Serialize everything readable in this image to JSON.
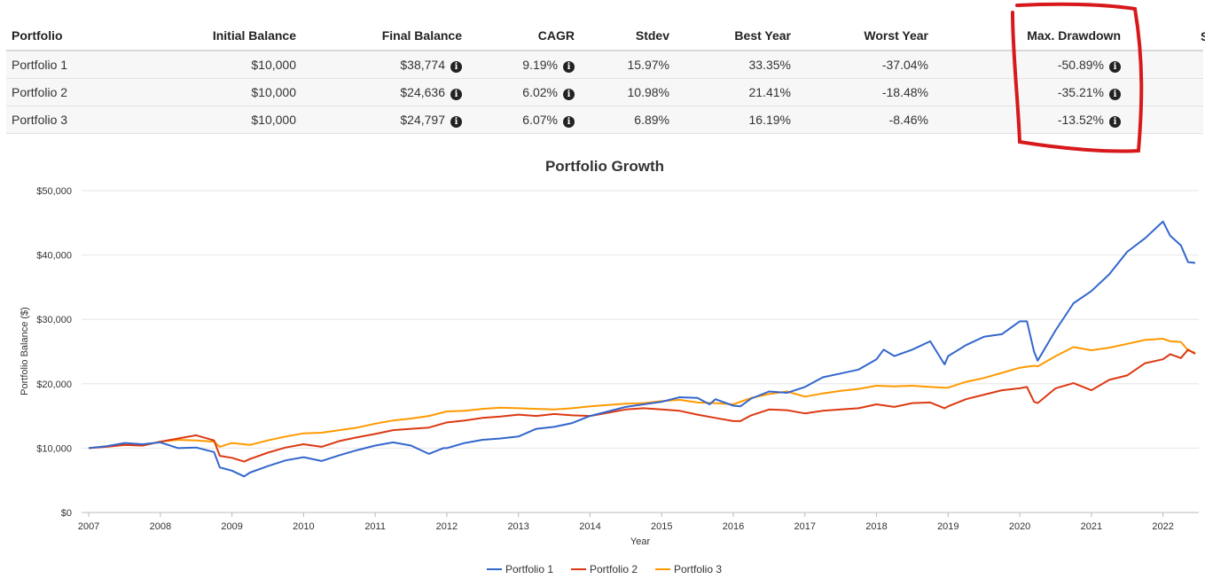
{
  "table": {
    "headers": [
      "Portfolio",
      "Initial Balance",
      "Final Balance",
      "CAGR",
      "Stdev",
      "Best Year",
      "Worst Year",
      "Max. Drawdown"
    ],
    "rows": [
      {
        "name": "Portfolio 1",
        "initial": "$10,000",
        "final": "$38,774",
        "cagr": "9.19%",
        "stdev": "15.97%",
        "best": "33.35%",
        "worst": "-37.04%",
        "maxdd": "-50.89%"
      },
      {
        "name": "Portfolio 2",
        "initial": "$10,000",
        "final": "$24,636",
        "cagr": "6.02%",
        "stdev": "10.98%",
        "best": "21.41%",
        "worst": "-18.48%",
        "maxdd": "-35.21%"
      },
      {
        "name": "Portfolio 3",
        "initial": "$10,000",
        "final": "$24,797",
        "cagr": "6.07%",
        "stdev": "6.89%",
        "best": "16.19%",
        "worst": "-8.46%",
        "maxdd": "-13.52%"
      }
    ],
    "info_glyph": "i",
    "cut_off_header": "S"
  },
  "annotation_color": "#d7191c",
  "chart_data": {
    "type": "line",
    "title": "Portfolio Growth",
    "xlabel": "Year",
    "ylabel": "Portfolio Balance ($)",
    "xlim": [
      2006.9,
      2022.5
    ],
    "ylim": [
      0,
      50000
    ],
    "yticks": [
      0,
      10000,
      20000,
      30000,
      40000,
      50000
    ],
    "ytick_labels": [
      "$0",
      "$10,000",
      "$20,000",
      "$30,000",
      "$40,000",
      "$50,000"
    ],
    "xticks": [
      2007,
      2008,
      2009,
      2010,
      2011,
      2012,
      2013,
      2014,
      2015,
      2016,
      2017,
      2018,
      2019,
      2020,
      2021,
      2022
    ],
    "grid": true,
    "legend": "bottom-center",
    "series": [
      {
        "name": "Portfolio 1",
        "color": "#3366cc",
        "x": [
          2007.0,
          2007.25,
          2007.5,
          2007.75,
          2008.0,
          2008.25,
          2008.5,
          2008.75,
          2008.83,
          2009.0,
          2009.17,
          2009.25,
          2009.5,
          2009.75,
          2010.0,
          2010.25,
          2010.5,
          2010.75,
          2011.0,
          2011.25,
          2011.5,
          2011.75,
          2011.95,
          2012.0,
          2012.25,
          2012.5,
          2012.75,
          2013.0,
          2013.25,
          2013.5,
          2013.75,
          2014.0,
          2014.25,
          2014.5,
          2014.75,
          2015.0,
          2015.25,
          2015.5,
          2015.67,
          2015.75,
          2016.0,
          2016.1,
          2016.25,
          2016.5,
          2016.75,
          2017.0,
          2017.25,
          2017.5,
          2017.75,
          2018.0,
          2018.1,
          2018.25,
          2018.5,
          2018.75,
          2018.95,
          2019.0,
          2019.25,
          2019.5,
          2019.75,
          2020.0,
          2020.1,
          2020.2,
          2020.25,
          2020.5,
          2020.75,
          2021.0,
          2021.25,
          2021.5,
          2021.75,
          2022.0,
          2022.1,
          2022.25,
          2022.35,
          2022.45
        ],
        "values": [
          10000,
          10300,
          10800,
          10600,
          10900,
          10000,
          10100,
          9400,
          7000,
          6500,
          5600,
          6200,
          7200,
          8100,
          8600,
          8000,
          8900,
          9700,
          10400,
          10900,
          10400,
          9100,
          10000,
          10000,
          10800,
          11300,
          11500,
          11800,
          13000,
          13300,
          13900,
          15000,
          15700,
          16400,
          16800,
          17200,
          17900,
          17800,
          16800,
          17600,
          16600,
          16500,
          17700,
          18800,
          18600,
          19500,
          21000,
          21600,
          22200,
          23800,
          25300,
          24300,
          25300,
          26600,
          23000,
          24300,
          26000,
          27300,
          27700,
          29700,
          29700,
          25000,
          23600,
          28300,
          32500,
          34400,
          37000,
          40500,
          42600,
          45200,
          43000,
          41500,
          38900,
          38774
        ]
      },
      {
        "name": "Portfolio 2",
        "color": "#dc3912",
        "x": [
          2007.0,
          2007.25,
          2007.5,
          2007.75,
          2008.0,
          2008.25,
          2008.5,
          2008.75,
          2008.83,
          2009.0,
          2009.17,
          2009.25,
          2009.5,
          2009.75,
          2010.0,
          2010.25,
          2010.5,
          2010.75,
          2011.0,
          2011.25,
          2011.5,
          2011.75,
          2012.0,
          2012.25,
          2012.5,
          2012.75,
          2013.0,
          2013.25,
          2013.5,
          2013.75,
          2014.0,
          2014.25,
          2014.5,
          2014.75,
          2015.0,
          2015.25,
          2015.5,
          2015.75,
          2016.0,
          2016.1,
          2016.25,
          2016.5,
          2016.75,
          2017.0,
          2017.25,
          2017.5,
          2017.75,
          2018.0,
          2018.25,
          2018.5,
          2018.75,
          2018.95,
          2019.0,
          2019.25,
          2019.5,
          2019.75,
          2020.0,
          2020.1,
          2020.2,
          2020.25,
          2020.5,
          2020.75,
          2021.0,
          2021.25,
          2021.5,
          2021.75,
          2022.0,
          2022.1,
          2022.25,
          2022.35,
          2022.45
        ],
        "values": [
          10000,
          10200,
          10500,
          10400,
          11000,
          11500,
          12000,
          11200,
          8800,
          8500,
          7900,
          8300,
          9300,
          10100,
          10600,
          10200,
          11100,
          11700,
          12200,
          12800,
          13000,
          13200,
          14000,
          14300,
          14700,
          14900,
          15200,
          15000,
          15300,
          15100,
          15000,
          15500,
          16000,
          16200,
          16000,
          15800,
          15200,
          14700,
          14200,
          14200,
          15100,
          16000,
          15900,
          15400,
          15800,
          16000,
          16200,
          16800,
          16400,
          17000,
          17100,
          16200,
          16500,
          17600,
          18300,
          19000,
          19300,
          19500,
          17200,
          17000,
          19300,
          20100,
          19000,
          20600,
          21300,
          23200,
          23800,
          24600,
          24000,
          25300,
          24636
        ]
      },
      {
        "name": "Portfolio 3",
        "color": "#ff9900",
        "x": [
          2007.0,
          2007.25,
          2007.5,
          2007.75,
          2008.0,
          2008.25,
          2008.5,
          2008.75,
          2008.83,
          2009.0,
          2009.25,
          2009.5,
          2009.75,
          2010.0,
          2010.25,
          2010.5,
          2010.75,
          2011.0,
          2011.25,
          2011.5,
          2011.75,
          2012.0,
          2012.25,
          2012.5,
          2012.75,
          2013.0,
          2013.25,
          2013.5,
          2013.75,
          2014.0,
          2014.25,
          2014.5,
          2014.75,
          2015.0,
          2015.25,
          2015.5,
          2015.75,
          2016.0,
          2016.25,
          2016.5,
          2016.75,
          2017.0,
          2017.25,
          2017.5,
          2017.75,
          2018.0,
          2018.25,
          2018.5,
          2018.75,
          2018.95,
          2019.0,
          2019.25,
          2019.5,
          2019.75,
          2020.0,
          2020.2,
          2020.25,
          2020.5,
          2020.75,
          2021.0,
          2021.25,
          2021.5,
          2021.75,
          2022.0,
          2022.1,
          2022.25,
          2022.35,
          2022.45
        ],
        "values": [
          10000,
          10300,
          10500,
          10400,
          11000,
          11300,
          11200,
          11000,
          10200,
          10800,
          10500,
          11200,
          11800,
          12300,
          12400,
          12800,
          13200,
          13800,
          14300,
          14600,
          15000,
          15700,
          15800,
          16100,
          16300,
          16200,
          16100,
          16000,
          16200,
          16500,
          16700,
          16900,
          17000,
          17300,
          17500,
          17100,
          17000,
          16800,
          17800,
          18400,
          18800,
          18000,
          18500,
          18900,
          19200,
          19700,
          19600,
          19700,
          19500,
          19400,
          19400,
          20300,
          20900,
          21700,
          22500,
          22800,
          22700,
          24300,
          25700,
          25200,
          25600,
          26200,
          26800,
          27000,
          26600,
          26500,
          25200,
          24797
        ]
      }
    ]
  }
}
